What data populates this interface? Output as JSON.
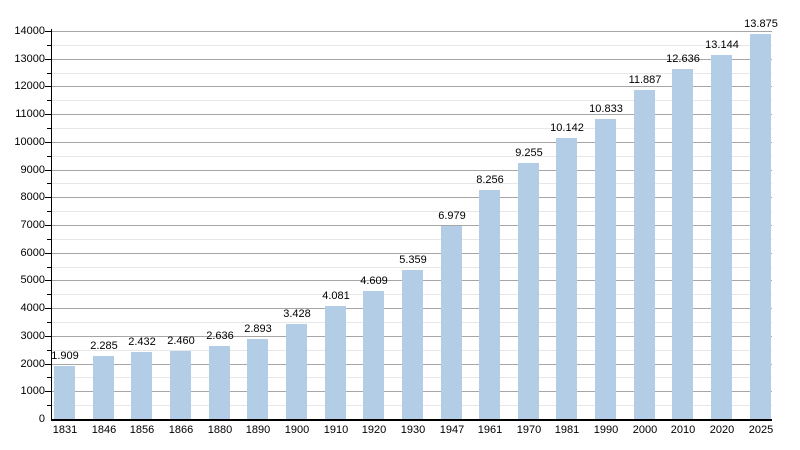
{
  "chart_data": {
    "type": "bar",
    "title": "",
    "categories": [
      "1831",
      "1846",
      "1856",
      "1866",
      "1880",
      "1890",
      "1900",
      "1910",
      "1920",
      "1930",
      "1947",
      "1961",
      "1970",
      "1981",
      "1990",
      "2000",
      "2010",
      "2020",
      "2025"
    ],
    "values": [
      1909,
      2285,
      2432,
      2460,
      2636,
      2893,
      3428,
      4081,
      4609,
      5359,
      6979,
      8256,
      9255,
      10142,
      10833,
      11887,
      12636,
      13144,
      13875
    ],
    "value_labels": [
      "1.909",
      "2.285",
      "2.432",
      "2.460",
      "2.636",
      "2.893",
      "3.428",
      "4.081",
      "4.609",
      "5.359",
      "6.979",
      "8.256",
      "9.255",
      "10.142",
      "10.833",
      "11.887",
      "12.636",
      "13.144",
      "13.875"
    ],
    "xlabel": "",
    "ylabel": "",
    "ylim": [
      0,
      14000
    ],
    "y_major_step": 1000,
    "y_minor_step": 500,
    "y_tick_labels": [
      "0",
      "1000",
      "2000",
      "3000",
      "4000",
      "5000",
      "6000",
      "7000",
      "8000",
      "9000",
      "10000",
      "11000",
      "12000",
      "13000",
      "14000"
    ],
    "grid": true,
    "legend_position": "none",
    "colors": {
      "bar_fill": "#b4cde7",
      "major_gridline": "#a6a6a6",
      "minor_gridline": "#e7e7e7",
      "axis": "#000000",
      "text": "#000000",
      "background": "#ffffff"
    }
  }
}
